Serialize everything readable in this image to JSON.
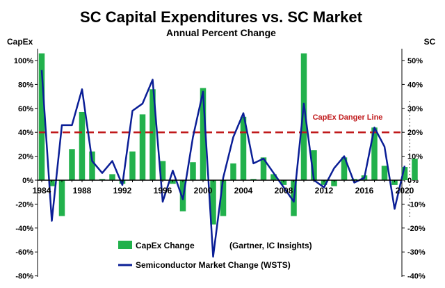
{
  "chart_data": {
    "type": "bar+line",
    "title": "SC Capital Expenditures vs. SC Market",
    "subtitle": "Annual Percent Change",
    "left_axis_label": "CapEx",
    "right_axis_label": "SC",
    "left_ylim": [
      -80,
      110
    ],
    "right_ylim": [
      -40,
      55
    ],
    "left_ticks": [
      "100%",
      "80%",
      "60%",
      "40%",
      "20%",
      "0%",
      "-20%",
      "-40%",
      "-60%",
      "-80%"
    ],
    "right_ticks": [
      "50%",
      "40%",
      "30%",
      "20%",
      "10%",
      "0%",
      "-10%",
      "-20%",
      "-30%",
      "-40%"
    ],
    "x_labels": [
      "1984",
      "1988",
      "1992",
      "1996",
      "2000",
      "2004",
      "2008",
      "2012",
      "2016",
      "2020"
    ],
    "years": [
      1984,
      1985,
      1986,
      1987,
      1988,
      1989,
      1990,
      1991,
      1992,
      1993,
      1994,
      1995,
      1996,
      1997,
      1998,
      1999,
      2000,
      2001,
      2002,
      2003,
      2004,
      2005,
      2006,
      2007,
      2008,
      2009,
      2010,
      2011,
      2012,
      2013,
      2014,
      2015,
      2016,
      2017,
      2018,
      2019,
      2020,
      2021
    ],
    "series": [
      {
        "name": "CapEx Change",
        "source": "(Gartner, IC Insights)",
        "axis": "left",
        "color": "#22b14c",
        "values": [
          106,
          -5,
          -30,
          26,
          57,
          24,
          1,
          5,
          -3,
          24,
          55,
          76,
          16,
          -3,
          -26,
          15,
          77,
          -37,
          -30,
          14,
          53,
          1,
          19,
          5,
          -4,
          -30,
          106,
          25,
          -4,
          -5,
          19,
          1,
          4,
          44,
          12,
          -4,
          11,
          18
        ]
      },
      {
        "name": "Semiconductor Market Change (WSTS)",
        "axis": "right",
        "color": "#0a1e96",
        "values": [
          46,
          -17,
          23,
          23,
          38,
          8,
          3,
          8,
          -2,
          29,
          32,
          42,
          -9,
          4,
          -8,
          18,
          37,
          -32,
          1,
          18,
          28,
          7,
          9,
          3,
          -3,
          -9,
          32,
          0,
          -3,
          5,
          10,
          -1,
          1,
          22,
          14,
          -12,
          6
        ]
      }
    ],
    "reference_line": {
      "label": "CapEx Danger Line",
      "value": 40,
      "axis": "left",
      "color": "#c0191b"
    },
    "legend_placement": "bottom-center",
    "grid": false
  }
}
